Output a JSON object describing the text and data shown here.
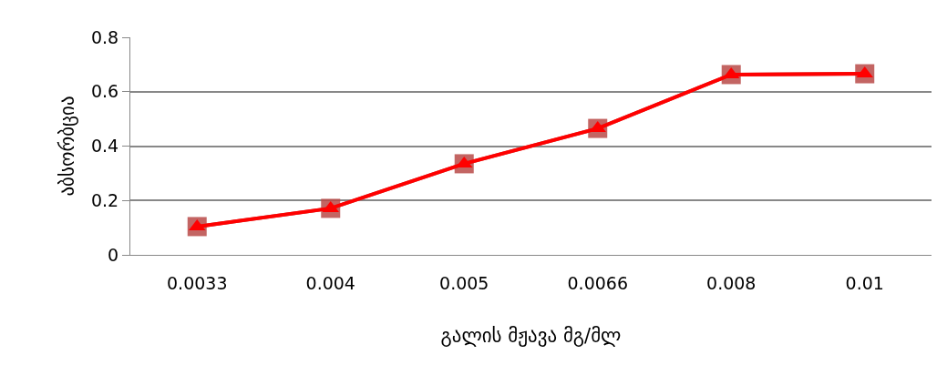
{
  "chart_data": {
    "type": "line",
    "xlabel": "გალის მჟავა მგ/მლ",
    "ylabel": "აბსორბცია",
    "categories": [
      "0.0033",
      "0.004",
      "0.005",
      "0.0066",
      "0.008",
      "0.01"
    ],
    "series": [
      {
        "color": "#b94a48",
        "marker": "square",
        "values": [
          0.104,
          0.171,
          0.335,
          0.465,
          0.663,
          0.666
        ]
      },
      {
        "color": "#ff0000",
        "marker": "triangle",
        "values": [
          0.104,
          0.171,
          0.335,
          0.465,
          0.663,
          0.666
        ]
      }
    ],
    "ylim": [
      0,
      0.8
    ],
    "yticks": [
      0,
      0.2,
      0.4,
      0.6,
      0.8
    ],
    "grid": "y"
  }
}
